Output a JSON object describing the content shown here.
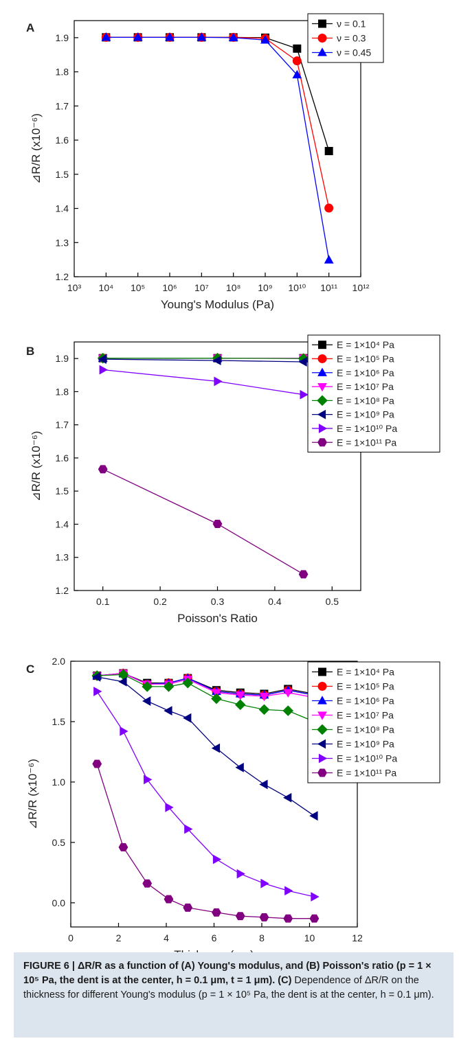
{
  "chart_data": [
    {
      "panel": "A",
      "type": "line",
      "xscale": "log",
      "xlabel": "Young's Modulus (Pa)",
      "ylabel": "⊿R/R (x10⁻⁶)",
      "xlim": [
        1000,
        1000000000000
      ],
      "ylim": [
        1.2,
        1.95
      ],
      "x_ticks": [
        "10³",
        "10⁴",
        "10⁵",
        "10⁶",
        "10⁷",
        "10⁸",
        "10⁹",
        "10¹⁰",
        "10¹¹",
        "10¹²"
      ],
      "y_ticks": [
        "1.2",
        "1.3",
        "1.4",
        "1.5",
        "1.6",
        "1.7",
        "1.8",
        "1.9"
      ],
      "legend_position": "top-right",
      "x": [
        10000,
        100000,
        1000000,
        10000000,
        100000000,
        1000000000,
        10000000000,
        100000000000
      ],
      "series": [
        {
          "name": "ν = 0.1",
          "color": "#000000",
          "marker": "square",
          "values": [
            1.901,
            1.901,
            1.901,
            1.901,
            1.901,
            1.9,
            1.868,
            1.568
          ]
        },
        {
          "name": "ν = 0.3",
          "color": "#ff0000",
          "marker": "circle",
          "values": [
            1.901,
            1.901,
            1.901,
            1.901,
            1.901,
            1.898,
            1.832,
            1.401
          ]
        },
        {
          "name": "ν = 0.45",
          "color": "#0000ff",
          "marker": "triangle-up",
          "values": [
            1.901,
            1.901,
            1.901,
            1.901,
            1.9,
            1.893,
            1.791,
            1.249
          ]
        }
      ]
    },
    {
      "panel": "B",
      "type": "line",
      "xlabel": "Poisson's Ratio",
      "ylabel": "⊿R/R (x10⁻⁶)",
      "xlim": [
        0.05,
        0.55
      ],
      "ylim": [
        1.2,
        1.95
      ],
      "x_ticks": [
        "0.1",
        "0.2",
        "0.3",
        "0.4",
        "0.5"
      ],
      "y_ticks": [
        "1.2",
        "1.3",
        "1.4",
        "1.5",
        "1.6",
        "1.7",
        "1.8",
        "1.9"
      ],
      "legend_position": "top-right",
      "x": [
        0.1,
        0.3,
        0.45
      ],
      "series": [
        {
          "name": "E = 1×10⁴ Pa",
          "color": "#000000",
          "marker": "square",
          "values": [
            1.901,
            1.901,
            1.901
          ]
        },
        {
          "name": "E = 1×10⁵ Pa",
          "color": "#ff0000",
          "marker": "circle",
          "values": [
            1.901,
            1.901,
            1.901
          ]
        },
        {
          "name": "E = 1×10⁶ Pa",
          "color": "#0000ff",
          "marker": "triangle-up",
          "values": [
            1.901,
            1.901,
            1.901
          ]
        },
        {
          "name": "E = 1×10⁷ Pa",
          "color": "#ff00ff",
          "marker": "triangle-down",
          "values": [
            1.901,
            1.901,
            1.901
          ]
        },
        {
          "name": "E = 1×10⁸ Pa",
          "color": "#008000",
          "marker": "diamond",
          "values": [
            1.901,
            1.901,
            1.9
          ]
        },
        {
          "name": "E = 1×10⁹ Pa",
          "color": "#000080",
          "marker": "triangle-left",
          "values": [
            1.898,
            1.894,
            1.89
          ]
        },
        {
          "name": "E = 1×10¹⁰ Pa",
          "color": "#8000ff",
          "marker": "triangle-right",
          "values": [
            1.866,
            1.831,
            1.791
          ]
        },
        {
          "name": "E = 1×10¹¹ Pa",
          "color": "#800080",
          "marker": "hexagon",
          "values": [
            1.566,
            1.401,
            1.249
          ]
        }
      ]
    },
    {
      "panel": "C",
      "type": "line",
      "xlabel": "Thickness (μm)",
      "ylabel": "⊿R/R (x10⁻⁶)",
      "xlim": [
        0,
        12
      ],
      "ylim": [
        -0.2,
        2.0
      ],
      "x_ticks": [
        "0",
        "2",
        "4",
        "6",
        "8",
        "10",
        "12"
      ],
      "y_ticks": [
        "0.0",
        "0.5",
        "1.0",
        "1.5",
        "2.0"
      ],
      "legend_position": "top-right",
      "x": [
        1.1,
        2.2,
        3.2,
        4.1,
        4.9,
        6.1,
        7.1,
        8.1,
        9.1,
        10.2
      ],
      "series": [
        {
          "name": "E = 1×10⁴ Pa",
          "color": "#000000",
          "marker": "square",
          "values": [
            1.88,
            1.9,
            1.82,
            1.82,
            1.86,
            1.76,
            1.74,
            1.73,
            1.77,
            1.73
          ]
        },
        {
          "name": "E = 1×10⁵ Pa",
          "color": "#ff0000",
          "marker": "circle",
          "values": [
            1.88,
            1.9,
            1.81,
            1.82,
            1.86,
            1.75,
            1.73,
            1.72,
            1.76,
            1.72
          ]
        },
        {
          "name": "E = 1×10⁶ Pa",
          "color": "#0000ff",
          "marker": "triangle-up",
          "values": [
            1.88,
            1.9,
            1.81,
            1.82,
            1.86,
            1.75,
            1.73,
            1.72,
            1.76,
            1.72
          ]
        },
        {
          "name": "E = 1×10⁷ Pa",
          "color": "#ff00ff",
          "marker": "triangle-down",
          "values": [
            1.88,
            1.9,
            1.81,
            1.81,
            1.85,
            1.74,
            1.72,
            1.71,
            1.74,
            1.7
          ]
        },
        {
          "name": "E = 1×10⁸ Pa",
          "color": "#008000",
          "marker": "diamond",
          "values": [
            1.88,
            1.89,
            1.79,
            1.79,
            1.82,
            1.69,
            1.64,
            1.6,
            1.59,
            1.5
          ]
        },
        {
          "name": "E = 1×10⁹ Pa",
          "color": "#000080",
          "marker": "triangle-left",
          "values": [
            1.87,
            1.83,
            1.67,
            1.59,
            1.53,
            1.28,
            1.12,
            0.98,
            0.87,
            0.72
          ]
        },
        {
          "name": "E = 1×10¹⁰ Pa",
          "color": "#8000ff",
          "marker": "triangle-right",
          "values": [
            1.75,
            1.42,
            1.02,
            0.79,
            0.61,
            0.36,
            0.24,
            0.16,
            0.1,
            0.05
          ]
        },
        {
          "name": "E = 1×10¹¹ Pa",
          "color": "#800080",
          "marker": "hexagon",
          "values": [
            1.15,
            0.46,
            0.16,
            0.03,
            -0.04,
            -0.08,
            -0.11,
            -0.12,
            -0.13,
            -0.13
          ]
        }
      ]
    }
  ],
  "panel_letters": [
    "A",
    "B",
    "C"
  ],
  "caption": {
    "figure_label": "FIGURE 6 |",
    "bold_text": " ΔR/R as a function of (A) Young's modulus, and (B) Poisson's ratio (p = 1 × 10⁵ Pa, the dent is at the center, h = 0.1 μm, t = 1 μm).",
    "panel_c_label": " (C)",
    "regular_text": " Dependence of ΔR/R on the thickness for different Young's modulus (p = 1 × 10⁵ Pa, the dent is at the center, h = 0.1 μm)."
  }
}
